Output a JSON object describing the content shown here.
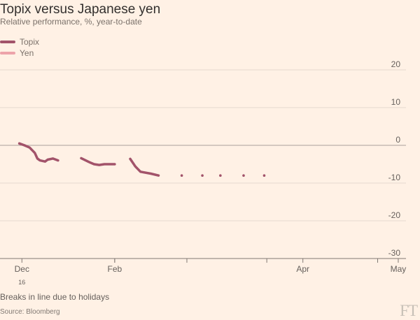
{
  "chart_data": {
    "type": "line",
    "title": "Topix versus Japanese yen",
    "subtitle": "Relative performance, %, year-to-date",
    "note": "Breaks in line due to holidays",
    "source": "Source: Bloomberg",
    "brand": "FT",
    "ylim": [
      -30,
      20
    ],
    "yticks": [
      20,
      10,
      0,
      -10,
      -20,
      -30
    ],
    "xlim": [
      -8.5,
      149
    ],
    "xticks": [
      {
        "day": 0,
        "label": "Dec",
        "sublabel": "16"
      },
      {
        "day": 36,
        "label": "",
        "sublabel": ""
      },
      {
        "day": 36,
        "label": "Feb",
        "sublabel": ""
      },
      {
        "day": 64,
        "label": "",
        "sublabel": ""
      },
      {
        "day": 95,
        "label": "",
        "sublabel": ""
      },
      {
        "day": 109,
        "label": "Apr",
        "sublabel": ""
      },
      {
        "day": 138,
        "label": "",
        "sublabel": ""
      },
      {
        "day": 146,
        "label": "May",
        "sublabel": ""
      }
    ],
    "legend_position": "top-left",
    "grid": true,
    "series": [
      {
        "name": "Topix",
        "color": "#a2536a",
        "segments": [
          [
            [
              -1,
              0.5
            ],
            [
              1,
              0
            ],
            [
              3,
              -0.6
            ],
            [
              5,
              -2
            ],
            [
              6,
              -3.5
            ],
            [
              7,
              -4
            ],
            [
              9,
              -4.3
            ],
            [
              10,
              -3.8
            ],
            [
              12,
              -3.5
            ],
            [
              14,
              -4
            ]
          ],
          [
            [
              23,
              -3.4
            ],
            [
              26,
              -4.4
            ],
            [
              28,
              -5
            ],
            [
              30,
              -5.2
            ],
            [
              32,
              -5
            ],
            [
              36,
              -5
            ]
          ],
          [
            [
              42,
              -3.6
            ],
            [
              44,
              -5.6
            ],
            [
              46,
              -7
            ],
            [
              50,
              -7.5
            ],
            [
              53,
              -8
            ]
          ],
          [
            [
              62,
              -8
            ]
          ],
          [
            [
              70,
              -8
            ]
          ],
          [
            [
              77,
              -8
            ]
          ],
          [
            [
              86,
              -8
            ]
          ],
          [
            [
              94,
              -8
            ]
          ]
        ]
      }
    ]
  }
}
